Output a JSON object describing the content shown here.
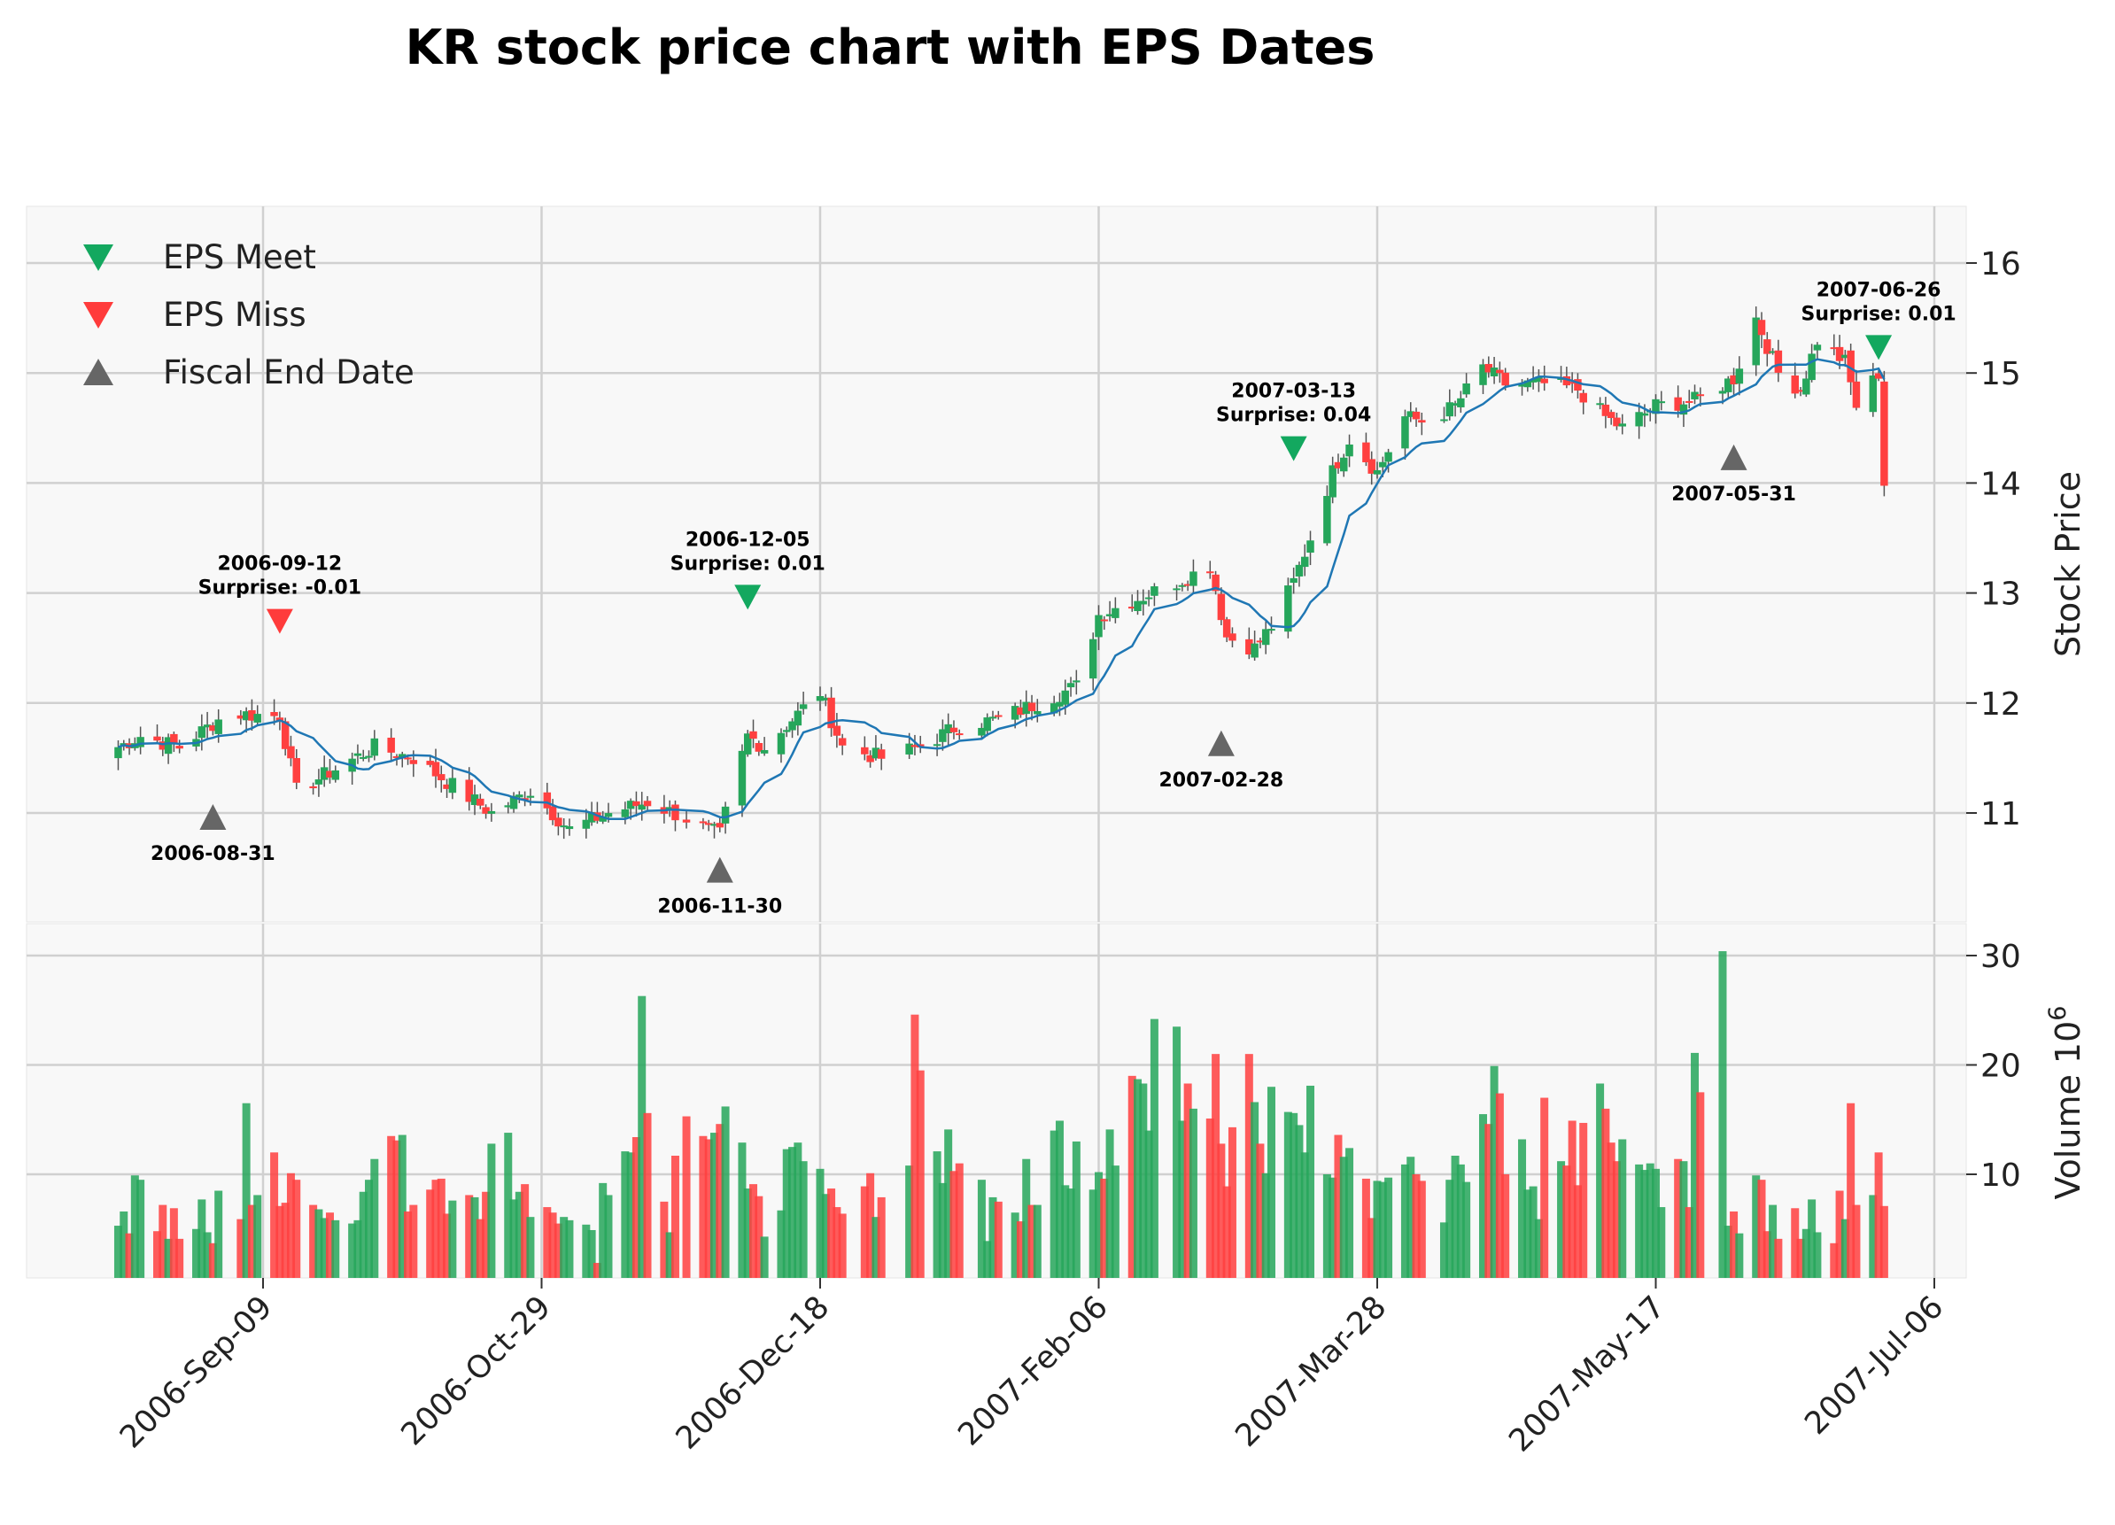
{
  "chart_data": {
    "type": "candlestick",
    "title": "KR stock price chart with EPS Dates",
    "ylabel_price": "Stock Price",
    "ylabel_volume": "Volume  10",
    "ylabel_volume_exp": "6",
    "x_range": [
      "2006-08-09",
      "2007-07-07"
    ],
    "price_ylim": [
      10.0,
      16.5
    ],
    "volume_ylim": [
      0,
      30
    ],
    "grid": true,
    "legend_position": "top-left",
    "colors": {
      "up": "#26a65b",
      "down": "#ff4040",
      "ma": "#1f77b4",
      "meet": "#13a85f",
      "miss": "#ff3b3b",
      "fiscal": "#666666",
      "panel_bg": "#f8f8f8",
      "grid": "#d0d0d0"
    },
    "x_ticks": [
      {
        "date": "2006-09-09",
        "label": "2006-Sep-09"
      },
      {
        "date": "2006-10-29",
        "label": "2006-Oct-29"
      },
      {
        "date": "2006-12-18",
        "label": "2006-Dec-18"
      },
      {
        "date": "2007-02-06",
        "label": "2007-Feb-06"
      },
      {
        "date": "2007-03-28",
        "label": "2007-Mar-28"
      },
      {
        "date": "2007-05-17",
        "label": "2007-May-17"
      },
      {
        "date": "2007-07-06",
        "label": "2007-Jul-06"
      }
    ],
    "price_ticks": [
      11,
      12,
      13,
      14,
      15,
      16
    ],
    "volume_ticks": [
      10,
      20,
      30
    ],
    "legend": [
      {
        "label": "EPS Meet",
        "marker": "down-triangle",
        "color": "#13a85f"
      },
      {
        "label": "EPS Miss",
        "marker": "down-triangle",
        "color": "#ff3b3b"
      },
      {
        "label": "Fiscal End Date",
        "marker": "up-triangle",
        "color": "#666666"
      }
    ],
    "eps_events": [
      {
        "date": "2006-09-12",
        "price": 12.75,
        "type": "miss",
        "line1": "2006-09-12",
        "line2": "Surprise: -0.01"
      },
      {
        "date": "2006-12-05",
        "price": 12.97,
        "type": "meet",
        "line1": "2006-12-05",
        "line2": "Surprise: 0.01"
      },
      {
        "date": "2007-03-13",
        "price": 14.32,
        "type": "meet",
        "line1": "2007-03-13",
        "line2": "Surprise: 0.04"
      },
      {
        "date": "2007-06-26",
        "price": 15.24,
        "type": "meet",
        "line1": "2007-06-26",
        "line2": "Surprise: 0.01"
      }
    ],
    "fiscal_events": [
      {
        "date": "2006-08-31",
        "price": 10.96,
        "label": "2006-08-31"
      },
      {
        "date": "2006-11-30",
        "price": 10.48,
        "label": "2006-11-30"
      },
      {
        "date": "2007-02-28",
        "price": 11.63,
        "label": "2007-02-28"
      },
      {
        "date": "2007-05-31",
        "price": 14.23,
        "label": "2007-05-31"
      }
    ],
    "close_anchors": [
      [
        "2006-08-14",
        11.6
      ],
      [
        "2006-08-18",
        11.7
      ],
      [
        "2006-08-25",
        11.6
      ],
      [
        "2006-09-01",
        11.85
      ],
      [
        "2006-09-05",
        11.9
      ],
      [
        "2006-09-12",
        11.88
      ],
      [
        "2006-09-15",
        11.2
      ],
      [
        "2006-09-22",
        11.4
      ],
      [
        "2006-09-29",
        11.6
      ],
      [
        "2006-10-06",
        11.5
      ],
      [
        "2006-10-13",
        11.25
      ],
      [
        "2006-10-20",
        11.0
      ],
      [
        "2006-10-27",
        11.2
      ],
      [
        "2006-11-03",
        10.85
      ],
      [
        "2006-11-10",
        11.0
      ],
      [
        "2006-11-17",
        11.1
      ],
      [
        "2006-11-24",
        10.95
      ],
      [
        "2006-11-30",
        10.8
      ],
      [
        "2006-12-01",
        11.0
      ],
      [
        "2006-12-05",
        11.7
      ],
      [
        "2006-12-08",
        11.6
      ],
      [
        "2006-12-13",
        11.85
      ],
      [
        "2006-12-18",
        12.1
      ],
      [
        "2006-12-22",
        11.6
      ],
      [
        "2006-12-29",
        11.5
      ],
      [
        "2007-01-05",
        11.6
      ],
      [
        "2007-01-12",
        11.8
      ],
      [
        "2007-01-19",
        11.85
      ],
      [
        "2007-01-26",
        12.0
      ],
      [
        "2007-02-02",
        12.15
      ],
      [
        "2007-02-06",
        12.8
      ],
      [
        "2007-02-13",
        12.95
      ],
      [
        "2007-02-20",
        13.1
      ],
      [
        "2007-02-26",
        13.25
      ],
      [
        "2007-03-01",
        12.6
      ],
      [
        "2007-03-06",
        12.5
      ],
      [
        "2007-03-09",
        12.7
      ],
      [
        "2007-03-13",
        13.1
      ],
      [
        "2007-03-16",
        13.5
      ],
      [
        "2007-03-20",
        14.1
      ],
      [
        "2007-03-23",
        14.4
      ],
      [
        "2007-03-28",
        14.1
      ],
      [
        "2007-04-02",
        14.6
      ],
      [
        "2007-04-06",
        14.55
      ],
      [
        "2007-04-11",
        14.7
      ],
      [
        "2007-04-16",
        15.05
      ],
      [
        "2007-04-20",
        14.9
      ],
      [
        "2007-04-27",
        14.9
      ],
      [
        "2007-05-03",
        14.85
      ],
      [
        "2007-05-08",
        14.6
      ],
      [
        "2007-05-11",
        14.5
      ],
      [
        "2007-05-17",
        14.7
      ],
      [
        "2007-05-24",
        14.75
      ],
      [
        "2007-05-31",
        14.95
      ],
      [
        "2007-06-04",
        15.5
      ],
      [
        "2007-06-08",
        15.0
      ],
      [
        "2007-06-12",
        14.85
      ],
      [
        "2007-06-15",
        15.3
      ],
      [
        "2007-06-20",
        15.1
      ],
      [
        "2007-06-22",
        14.7
      ],
      [
        "2007-06-26",
        15.0
      ],
      [
        "2007-06-27",
        14.0
      ]
    ],
    "volume_values_millions": [
      5.3,
      6.6,
      4.6,
      9.9,
      9.5,
      4.8,
      7.2,
      4.1,
      6.9,
      4.1,
      5.0,
      7.7,
      4.7,
      3.7,
      8.5,
      5.9,
      16.5,
      7.2,
      8.1,
      12.0,
      7.1,
      7.4,
      10.1,
      9.5,
      7.2,
      6.8,
      6.0,
      6.5,
      5.8,
      5.5,
      5.8,
      8.4,
      9.5,
      11.4,
      13.5,
      13.1,
      13.6,
      6.6,
      7.2,
      8.6,
      9.5,
      9.6,
      6.4,
      7.6,
      8.1,
      7.9,
      5.9,
      8.4,
      12.8,
      13.8,
      7.7,
      8.4,
      9.1,
      6.1,
      7.0,
      6.5,
      5.5,
      6.1,
      5.8,
      5.4,
      4.9,
      1.9,
      9.2,
      8.1,
      12.1,
      12.0,
      13.4,
      26.3,
      15.6,
      7.5,
      4.7,
      11.7,
      15.3,
      13.5,
      13.2,
      13.8,
      14.6,
      16.2,
      12.9,
      8.7,
      9.1,
      8.0,
      4.3,
      6.7,
      12.3,
      12.5,
      12.9,
      11.2,
      10.5,
      8.2,
      8.7,
      7.0,
      6.4,
      8.9,
      10.1,
      6.1,
      7.9,
      10.8,
      24.6,
      19.5,
      12.1,
      9.2,
      14.1,
      10.3,
      11.0,
      9.5,
      3.9,
      7.9,
      7.5,
      6.5,
      5.7,
      11.4,
      7.2,
      7.2,
      14.0,
      14.9,
      9.0,
      8.7,
      13.0,
      8.6,
      10.2,
      9.6,
      14.1,
      10.8,
      19.0,
      18.7,
      18.3,
      14.0,
      24.2,
      23.5,
      14.9,
      18.3,
      16.0,
      15.1,
      21.0,
      12.8,
      8.9,
      14.3,
      21.0,
      16.6,
      12.8,
      10.1,
      18.0,
      15.7,
      15.6,
      14.5,
      12.0,
      18.1,
      10.0,
      9.7,
      13.6,
      11.6,
      12.4,
      9.6,
      6.0,
      9.4,
      9.3,
      9.7,
      10.9,
      11.6,
      10.0,
      9.4,
      5.6,
      9.5,
      11.7,
      10.9,
      9.3,
      15.5,
      14.6,
      19.9,
      17.4,
      10.0,
      13.2,
      8.6,
      8.9,
      5.9,
      17.0,
      11.2,
      10.8,
      14.9,
      9.0,
      14.7,
      18.3,
      16.0,
      12.9,
      11.2,
      13.2,
      10.9,
      10.4,
      11.0,
      10.5,
      7.0,
      11.4,
      11.2,
      7.0,
      21.1,
      17.5,
      30.4
    ]
  }
}
